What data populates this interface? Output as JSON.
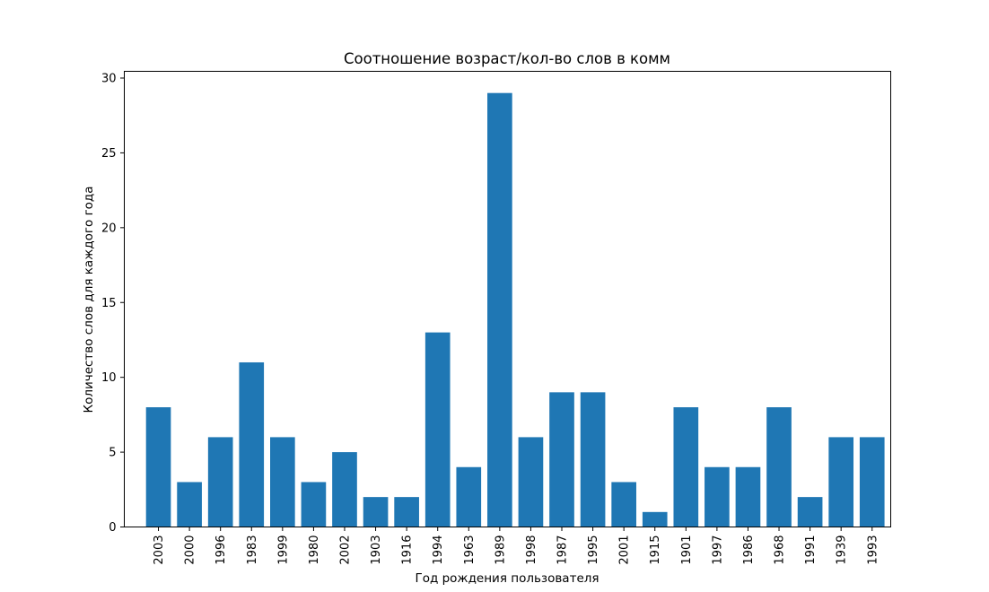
{
  "chart_data": {
    "type": "bar",
    "title": "Соотношение возраст/кол-во слов в комм",
    "xlabel": "Год рождения пользователя",
    "ylabel": "Количество слов для каждого года",
    "categories": [
      "2003",
      "2000",
      "1996",
      "1983",
      "1999",
      "1980",
      "2002",
      "1903",
      "1916",
      "1994",
      "1963",
      "1989",
      "1998",
      "1987",
      "1995",
      "2001",
      "1915",
      "1901",
      "1997",
      "1986",
      "1968",
      "1991",
      "1939",
      "1993"
    ],
    "values": [
      8,
      3,
      6,
      11,
      6,
      3,
      5,
      2,
      2,
      13,
      4,
      29,
      6,
      9,
      9,
      3,
      1,
      8,
      4,
      4,
      8,
      2,
      6,
      6
    ],
    "ylim": [
      0,
      30.45
    ],
    "yticks": [
      0,
      5,
      10,
      15,
      20,
      25,
      30
    ],
    "grid": false,
    "colors": {
      "bar": "#1f77b4"
    }
  }
}
